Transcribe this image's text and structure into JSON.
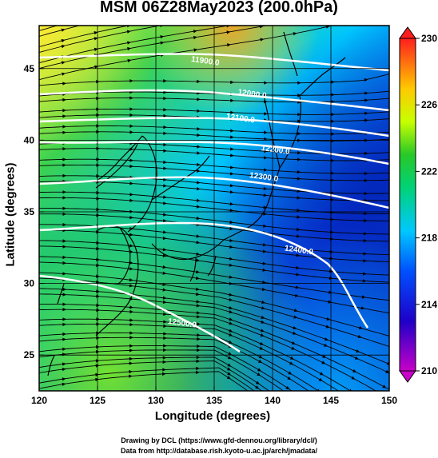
{
  "title": "MSM 06Z28May2023 (200.0hPa)",
  "xlabel": "Longitude (degrees)",
  "ylabel": "Latitude  (degrees)",
  "credits": [
    "Drawing by DCL (https://www.gfd-dennou.org/library/dcl/)",
    "Data from http://database.rish.kyoto-u.ac.jp/arch/jmadata/"
  ],
  "chart_data": {
    "type": "heatmap",
    "xlim": [
      120,
      150
    ],
    "ylim": [
      22.5,
      48
    ],
    "xticks": [
      120,
      125,
      130,
      135,
      140,
      145,
      150
    ],
    "yticks": [
      25,
      30,
      35,
      40,
      45
    ],
    "colorbar": {
      "range": [
        210,
        230
      ],
      "ticks": [
        210,
        214,
        218,
        222,
        226,
        230
      ],
      "colors": [
        "#c800c8",
        "#0000c8",
        "#00c8ff",
        "#00c850",
        "#c8ff00",
        "#ff8000",
        "#ff0000"
      ]
    },
    "contours": [
      {
        "label": "11900.0",
        "lon": 133,
        "lat": 45.5
      },
      {
        "label": "12000.0",
        "lon": 137,
        "lat": 43.2
      },
      {
        "label": "12100.0",
        "lon": 136,
        "lat": 41.5
      },
      {
        "label": "12200.0",
        "lon": 139,
        "lat": 39.3
      },
      {
        "label": "12300.0",
        "lon": 138,
        "lat": 37.4
      },
      {
        "label": "12400.0",
        "lon": 141,
        "lat": 32.3
      },
      {
        "label": "12500.0",
        "lon": 131,
        "lat": 27.2
      }
    ]
  }
}
